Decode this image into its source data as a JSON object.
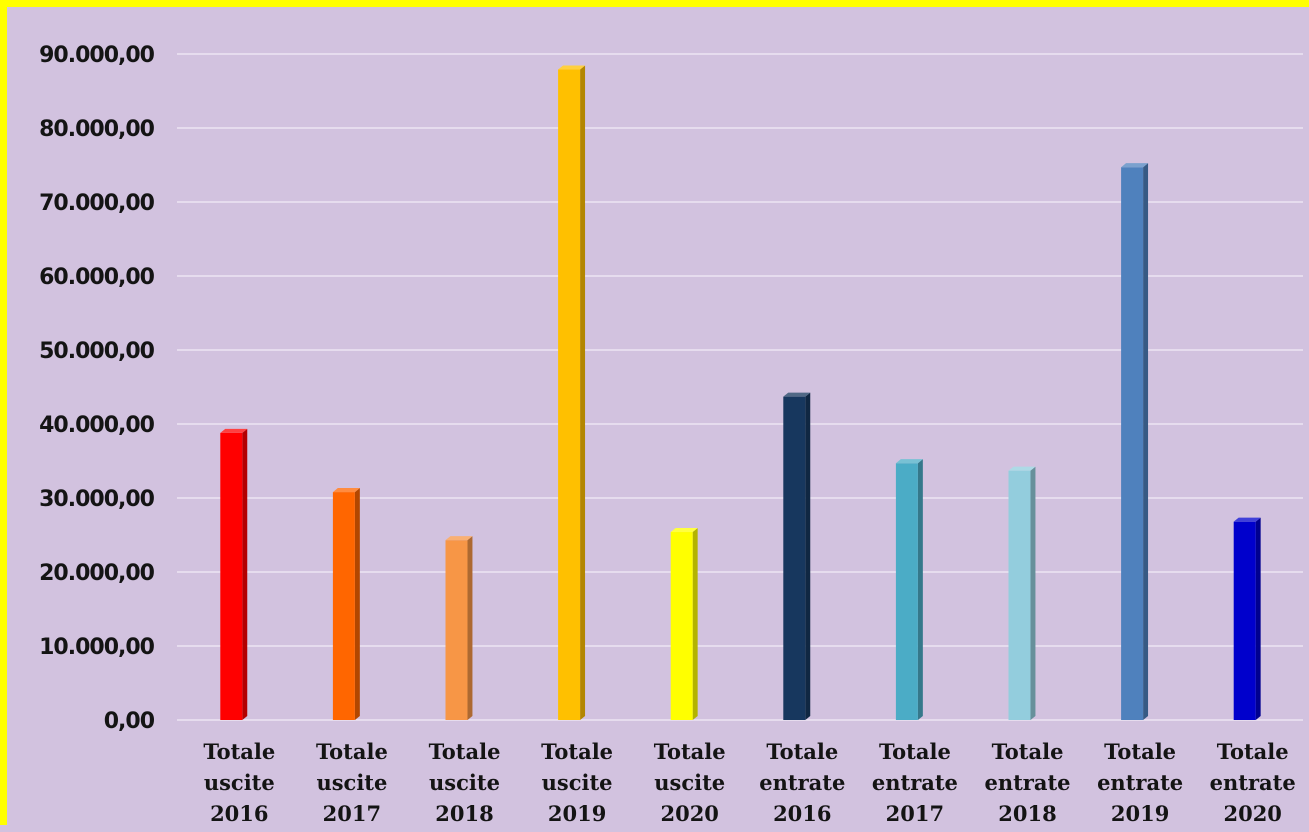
{
  "chart_data": {
    "type": "bar",
    "style": "3d-column",
    "title": "",
    "xlabel": "",
    "ylabel": "",
    "ylim": [
      0,
      90000
    ],
    "yticks": [
      0,
      10000,
      20000,
      30000,
      40000,
      50000,
      60000,
      70000,
      80000,
      90000
    ],
    "ytick_labels": [
      "0,00",
      "10.000,00",
      "20.000,00",
      "30.000,00",
      "40.000,00",
      "50.000,00",
      "60.000,00",
      "70.000,00",
      "80.000,00",
      "90.000,00"
    ],
    "grid": true,
    "legend": "none",
    "categories": [
      "Totale uscite 2016",
      "Totale uscite 2017",
      "Totale uscite 2018",
      "Totale uscite 2019",
      "Totale uscite 2020",
      "Totale entrate 2016",
      "Totale entrate 2017",
      "Totale entrate 2018",
      "Totale entrate 2019",
      "Totale entrate 2020"
    ],
    "category_lines": [
      [
        "Totale",
        "uscite",
        "2016"
      ],
      [
        "Totale",
        "uscite",
        "2017"
      ],
      [
        "Totale",
        "uscite",
        "2018"
      ],
      [
        "Totale",
        "uscite",
        "2019"
      ],
      [
        "Totale",
        "uscite",
        "2020"
      ],
      [
        "Totale",
        "entrate",
        "2016"
      ],
      [
        "Totale",
        "entrate",
        "2017"
      ],
      [
        "Totale",
        "entrate",
        "2018"
      ],
      [
        "Totale",
        "entrate",
        "2019"
      ],
      [
        "Totale",
        "entrate",
        "2020"
      ]
    ],
    "values": [
      38800,
      30800,
      24300,
      87900,
      25400,
      43700,
      34700,
      33700,
      74700,
      26800
    ],
    "colors": [
      "#ff0000",
      "#ff6600",
      "#f79646",
      "#ffc000",
      "#ffff00",
      "#17375e",
      "#4bacc6",
      "#93cddd",
      "#4f81bd",
      "#0000cc"
    ]
  },
  "colors": {
    "background": "#d2c2df",
    "border": "#ffff00",
    "gridline": "#e6dcee"
  }
}
